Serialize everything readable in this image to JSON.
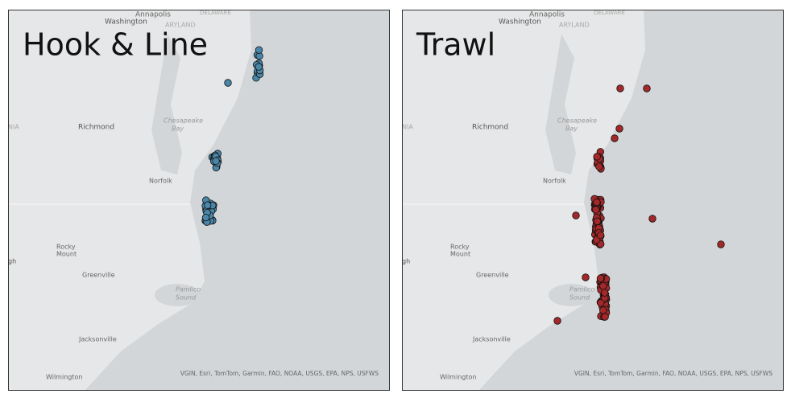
{
  "panels": [
    {
      "title": "Hook & Line"
    },
    {
      "title": "Trawl"
    }
  ],
  "places": [
    "Annapolis",
    "Washington",
    "DELAWARE",
    "ARYLAND",
    "NIA",
    "Richmond",
    "Chesapeake",
    "Bay",
    "Norfolk",
    "Rocky",
    "Mount",
    "gh",
    "Greenville",
    "Pamlico",
    "Sound",
    "Jacksonville",
    "Wilmington"
  ],
  "attribution": "VGIN, Esri, TomTom, Garmin, FAO, NOAA, USGS, EPA, NPS, USFWS"
}
